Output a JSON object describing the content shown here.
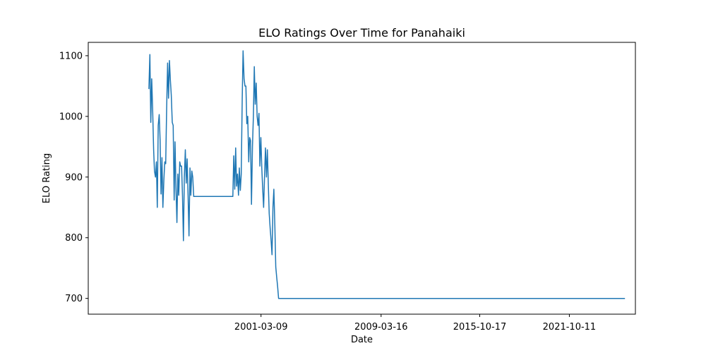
{
  "chart_data": {
    "type": "line",
    "title": "ELO Ratings Over Time for Panahaiki",
    "xlabel": "Date",
    "ylabel": "ELO Rating",
    "x_ticks": [
      "2001-03-09",
      "2009-03-16",
      "2015-10-17",
      "2021-10-11"
    ],
    "y_ticks": [
      700,
      800,
      900,
      1000,
      1100
    ],
    "xlim": [
      "1989-08-25",
      "2026-03-10"
    ],
    "ylim": [
      674,
      1122
    ],
    "grid": false,
    "legend": "none",
    "series": [
      {
        "color": "#1f77b4",
        "points": [
          [
            "1993-09-13",
            1045
          ],
          [
            "1993-10-06",
            1102
          ],
          [
            "1993-10-28",
            990
          ],
          [
            "1993-11-20",
            1062
          ],
          [
            "1993-12-13",
            1012
          ],
          [
            "1994-01-05",
            945
          ],
          [
            "1994-01-27",
            910
          ],
          [
            "1994-02-19",
            900
          ],
          [
            "1994-03-14",
            925
          ],
          [
            "1994-04-06",
            850
          ],
          [
            "1994-04-28",
            985
          ],
          [
            "1994-05-21",
            1003
          ],
          [
            "1994-06-13",
            960
          ],
          [
            "1994-07-06",
            872
          ],
          [
            "1994-07-28",
            932
          ],
          [
            "1994-08-20",
            850
          ],
          [
            "1994-09-12",
            895
          ],
          [
            "1994-10-05",
            925
          ],
          [
            "1994-10-27",
            922
          ],
          [
            "1994-11-19",
            1010
          ],
          [
            "1994-12-12",
            1088
          ],
          [
            "1995-01-04",
            1030
          ],
          [
            "1995-01-26",
            1092
          ],
          [
            "1995-02-18",
            1060
          ],
          [
            "1995-03-13",
            1035
          ],
          [
            "1995-04-05",
            990
          ],
          [
            "1995-04-28",
            985
          ],
          [
            "1995-05-21",
            862
          ],
          [
            "1995-06-12",
            958
          ],
          [
            "1995-07-05",
            880
          ],
          [
            "1995-07-28",
            825
          ],
          [
            "1995-08-19",
            905
          ],
          [
            "1995-09-11",
            870
          ],
          [
            "1995-10-04",
            925
          ],
          [
            "1995-10-26",
            918
          ],
          [
            "1995-11-18",
            918
          ],
          [
            "1995-12-11",
            868
          ],
          [
            "1996-01-03",
            795
          ],
          [
            "1996-01-25",
            900
          ],
          [
            "1996-02-17",
            945
          ],
          [
            "1996-03-11",
            890
          ],
          [
            "1996-04-02",
            930
          ],
          [
            "1996-04-25",
            870
          ],
          [
            "1996-05-18",
            803
          ],
          [
            "1996-06-10",
            915
          ],
          [
            "1996-07-02",
            870
          ],
          [
            "1996-07-25",
            910
          ],
          [
            "1996-08-17",
            900
          ],
          [
            "1996-09-09",
            868
          ],
          [
            "1999-04-22",
            868
          ],
          [
            "1999-05-15",
            935
          ],
          [
            "1999-06-07",
            880
          ],
          [
            "1999-06-29",
            948
          ],
          [
            "1999-07-22",
            885
          ],
          [
            "1999-08-14",
            905
          ],
          [
            "1999-09-06",
            870
          ],
          [
            "1999-09-28",
            915
          ],
          [
            "1999-10-21",
            878
          ],
          [
            "1999-11-13",
            905
          ],
          [
            "1999-12-06",
            1030
          ],
          [
            "1999-12-28",
            1108
          ],
          [
            "2000-01-20",
            1062
          ],
          [
            "2000-02-12",
            1050
          ],
          [
            "2000-03-06",
            1050
          ],
          [
            "2000-03-28",
            988
          ],
          [
            "2000-04-20",
            1000
          ],
          [
            "2000-05-13",
            925
          ],
          [
            "2000-06-05",
            965
          ],
          [
            "2000-06-27",
            960
          ],
          [
            "2000-07-20",
            855
          ],
          [
            "2000-08-12",
            950
          ],
          [
            "2000-09-04",
            1000
          ],
          [
            "2000-09-26",
            1082
          ],
          [
            "2000-10-19",
            1020
          ],
          [
            "2000-11-11",
            1055
          ],
          [
            "2000-12-04",
            1000
          ],
          [
            "2000-12-26",
            985
          ],
          [
            "2001-01-18",
            1005
          ],
          [
            "2001-02-10",
            918
          ],
          [
            "2001-03-05",
            965
          ],
          [
            "2001-03-27",
            915
          ],
          [
            "2001-04-19",
            880
          ],
          [
            "2001-05-12",
            850
          ],
          [
            "2001-06-04",
            905
          ],
          [
            "2001-06-26",
            948
          ],
          [
            "2001-07-19",
            900
          ],
          [
            "2001-08-11",
            945
          ],
          [
            "2001-09-03",
            890
          ],
          [
            "2001-09-25",
            840
          ],
          [
            "2001-10-18",
            815
          ],
          [
            "2001-11-10",
            795
          ],
          [
            "2001-12-03",
            772
          ],
          [
            "2001-12-25",
            850
          ],
          [
            "2002-01-17",
            880
          ],
          [
            "2002-02-09",
            820
          ],
          [
            "2002-03-04",
            752
          ],
          [
            "2002-03-26",
            735
          ],
          [
            "2002-04-18",
            720
          ],
          [
            "2002-05-11",
            700
          ],
          [
            "2025-06-28",
            700
          ]
        ]
      }
    ]
  }
}
